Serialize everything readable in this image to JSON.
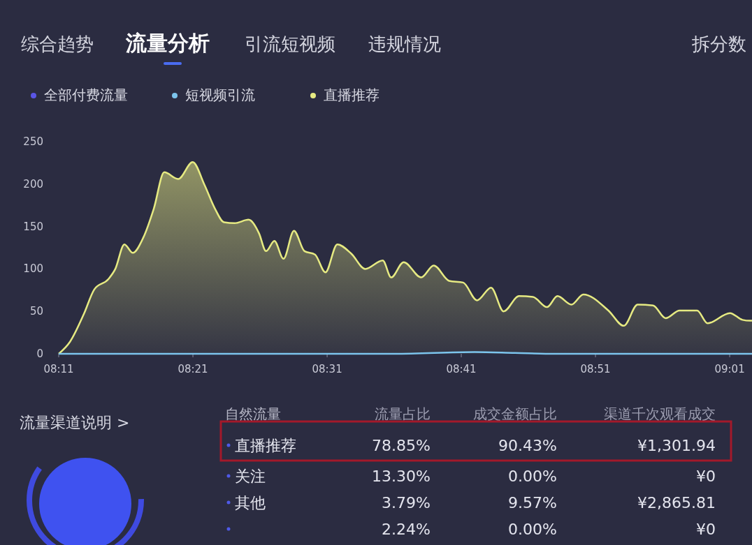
{
  "chart_data": [
    {
      "type": "other",
      "categories": [
        "综合趋势",
        "流量分析",
        "引流短视频",
        "违规情况",
        "拆分数"
      ]
    },
    {
      "type": "line",
      "legend": "top left",
      "marker": "none",
      "line_style": "solid",
      "grid": false,
      "xlim": [
        8.1833,
        9.0444
      ],
      "ylim": [
        0,
        250
      ],
      "yticks": [
        0,
        50,
        100,
        150,
        200,
        250
      ],
      "xticks": [
        {
          "value": 8.1833,
          "label": "08:11"
        },
        {
          "value": 8.35,
          "label": "08:21"
        },
        {
          "value": 8.5167,
          "label": "08:31"
        },
        {
          "value": 8.6833,
          "label": "08:41"
        },
        {
          "value": 8.85,
          "label": "08:51"
        },
        {
          "value": 9.0167,
          "label": "09:01"
        }
      ],
      "series": [
        {
          "name": "全部付费流量",
          "color": "#5a55e6",
          "type": "line"
        },
        {
          "name": "短视频引流",
          "color": "#7cc4ec",
          "type": "line",
          "x": [
            8.1833,
            8.4,
            8.6,
            8.7,
            8.75,
            8.8,
            9.0444
          ],
          "values": [
            0,
            0,
            0,
            2,
            1,
            0,
            0
          ]
        },
        {
          "name": "直播推荐",
          "color": "#e6ea82",
          "type": "area",
          "x": [
            8.1833,
            8.1972,
            8.2146,
            8.2276,
            8.245,
            8.2536,
            8.2649,
            8.2753,
            8.2884,
            8.3014,
            8.3144,
            8.3318,
            8.3497,
            8.3644,
            8.3774,
            8.3887,
            8.4018,
            8.4191,
            8.4321,
            8.4408,
            8.4512,
            8.4625,
            8.4755,
            8.4885,
            8.5016,
            8.5146,
            8.5293,
            8.5467,
            8.564,
            8.5858,
            8.5962,
            8.6118,
            8.6335,
            8.6491,
            8.6682,
            8.6856,
            8.7029,
            8.7203,
            8.7359,
            8.755,
            8.7724,
            8.7898,
            8.8028,
            8.8201,
            8.8349,
            8.866,
            8.8851,
            8.9024,
            8.9215,
            8.9371,
            8.9545,
            8.9762,
            8.9892,
            9.017,
            9.0326,
            9.042,
            9.0444
          ],
          "values": [
            0,
            14,
            47,
            76,
            88,
            100,
            129,
            119,
            137,
            171,
            214,
            206,
            226,
            199,
            171,
            155,
            154,
            158,
            142,
            121,
            133,
            112,
            145,
            121,
            117,
            96,
            129,
            118,
            100,
            110,
            90,
            108,
            90,
            104,
            86,
            84,
            63,
            78,
            50,
            68,
            67,
            55,
            68,
            58,
            70,
            51,
            33,
            58,
            57,
            42,
            51,
            51,
            36,
            48,
            40,
            39,
            39
          ]
        }
      ]
    },
    {
      "type": "other",
      "title": "流量渠道说明 >",
      "categories": [
        "直播推荐",
        "关注",
        "其他",
        null
      ],
      "annotations": [
        "自然流量",
        "流量占比",
        "成交金额占比",
        "渠道千次观看成交",
        "78.85%",
        "90.43%",
        "¥1,301.94",
        "13.30%",
        "0.00%",
        "¥0",
        "3.79%",
        "9.57%",
        "¥2,865.81",
        "2.24%",
        "0.00%",
        "¥0"
      ]
    }
  ]
}
